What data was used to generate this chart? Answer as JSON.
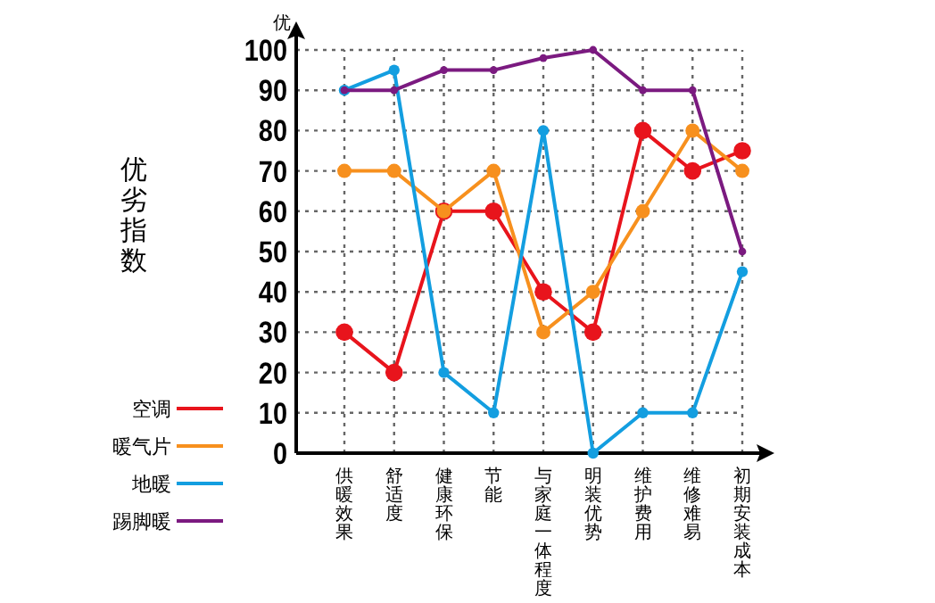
{
  "chart_data": {
    "type": "line",
    "ylabel": "优劣指数",
    "annotations": [
      "优"
    ],
    "categories": [
      "供暖效果",
      "舒适度",
      "健康环保",
      "节能",
      "与家庭一体程度",
      "明装优势",
      "维护费用",
      "维修难易",
      "初期安装成本"
    ],
    "series": [
      {
        "name": "空调",
        "color": "#e8141c",
        "values": [
          30,
          20,
          60,
          60,
          40,
          30,
          80,
          70,
          75
        ]
      },
      {
        "name": "暖气片",
        "color": "#f7901e",
        "values": [
          70,
          70,
          60,
          70,
          30,
          40,
          60,
          80,
          70
        ]
      },
      {
        "name": "地暖",
        "color": "#139ee0",
        "values": [
          90,
          95,
          20,
          10,
          80,
          0,
          10,
          10,
          45
        ]
      },
      {
        "name": "踢脚暖",
        "color": "#7b1a80",
        "values": [
          90,
          90,
          95,
          95,
          98,
          100,
          90,
          90,
          50
        ]
      }
    ],
    "ylim": [
      0,
      100
    ],
    "yticks": [
      0,
      10,
      20,
      30,
      40,
      50,
      60,
      70,
      80,
      90,
      100
    ],
    "grid": true,
    "legend": "bottom left",
    "marker": "circle",
    "line_style": "solid"
  }
}
